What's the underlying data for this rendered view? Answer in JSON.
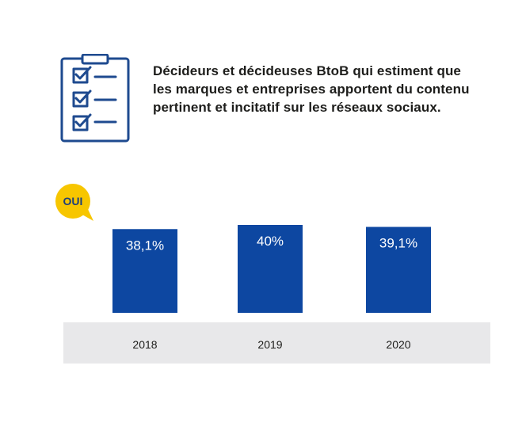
{
  "header": {
    "title": "Décideurs et décideuses BtoB qui estiment que les marques et entreprises apportent du contenu pertinent et incitatif sur les réseaux sociaux.",
    "icon": "clipboard-checklist-icon"
  },
  "badge": {
    "label": "OUI",
    "color": "#f7c600"
  },
  "colors": {
    "bar": "#0d47a1",
    "icon": "#1e4a8f",
    "axis_band": "#e8e8ea",
    "bar_label": "#ffffff",
    "tick_label": "#1d1d1b"
  },
  "chart_data": {
    "type": "bar",
    "categories": [
      "2018",
      "2019",
      "2020"
    ],
    "values": [
      38.1,
      40,
      39.1
    ],
    "value_labels": [
      "38,1%",
      "40%",
      "39,1%"
    ],
    "title": "",
    "xlabel": "",
    "ylabel": "",
    "ylim": [
      0,
      40
    ],
    "grid": false
  }
}
